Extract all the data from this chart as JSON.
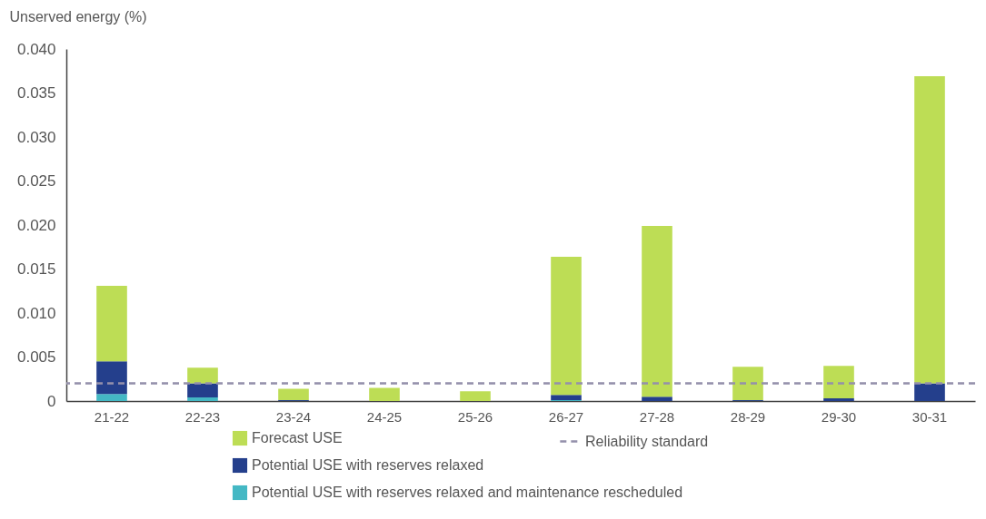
{
  "chart_data": {
    "type": "bar",
    "ylabel": "Unserved energy (%)",
    "categories": [
      "21-22",
      "22-23",
      "23-24",
      "24-25",
      "25-26",
      "26-27",
      "27-28",
      "28-29",
      "29-30",
      "30-31"
    ],
    "stacked": true,
    "series": [
      {
        "name": "Potential USE with reserves relaxed and maintenance rescheduled",
        "color": "#44b8c4",
        "values": [
          0.0008,
          0.0004,
          0,
          0,
          0,
          0.0001,
          0,
          0,
          0,
          0
        ]
      },
      {
        "name": "Potential USE with reserves relaxed",
        "color": "#243f8c",
        "values": [
          0.0037,
          0.0016,
          0.0001,
          0,
          0,
          0.0006,
          0.0005,
          0.0001,
          0.0003,
          0.002
        ]
      },
      {
        "name": "Forecast USE",
        "color": "#bddd55",
        "values": [
          0.0086,
          0.0018,
          0.0013,
          0.0015,
          0.0011,
          0.0157,
          0.0194,
          0.0038,
          0.0037,
          0.0349
        ]
      }
    ],
    "ylim": [
      0,
      0.04
    ],
    "yticks": [
      {
        "value": 0,
        "label": "0"
      },
      {
        "value": 0.005,
        "label": "0.005"
      },
      {
        "value": 0.01,
        "label": "0.010"
      },
      {
        "value": 0.015,
        "label": "0.015"
      },
      {
        "value": 0.02,
        "label": "0.020"
      },
      {
        "value": 0.025,
        "label": "0.025"
      },
      {
        "value": 0.03,
        "label": "0.030"
      },
      {
        "value": 0.035,
        "label": "0.035"
      },
      {
        "value": 0.04,
        "label": "0.040"
      }
    ],
    "ref_lines": [
      {
        "axis": "y",
        "value": 0.002,
        "label": "Reliability standard",
        "color": "#9490ab",
        "line_style": "dashed"
      }
    ],
    "grid": false,
    "legend": "bottom"
  }
}
